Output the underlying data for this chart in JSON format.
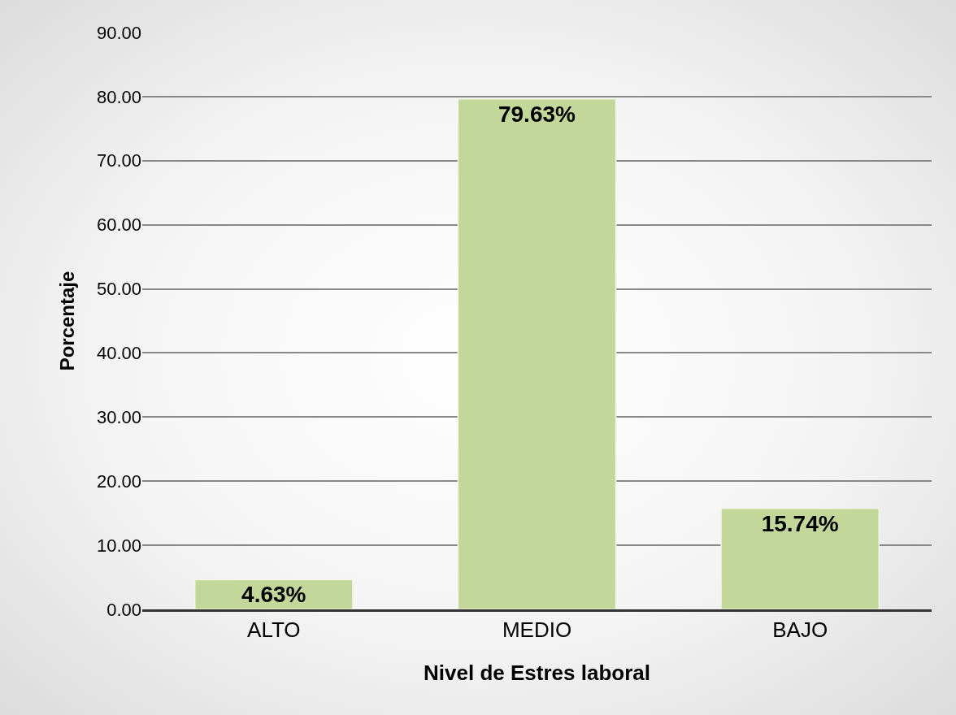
{
  "chart_data": {
    "type": "bar",
    "xlabel": "Nivel de Estres laboral",
    "ylabel": "Porcentaje",
    "categories": [
      "ALTO",
      "MEDIO",
      "BAJO"
    ],
    "values": [
      4.63,
      79.63,
      15.74
    ],
    "value_labels": [
      "4.63%",
      "79.63%",
      "15.74%"
    ],
    "color": "#c4d79b",
    "ylim": [
      0,
      90
    ],
    "yticks": [
      {
        "value": 0,
        "label": "0.00"
      },
      {
        "value": 10,
        "label": "10.00"
      },
      {
        "value": 20,
        "label": "20.00"
      },
      {
        "value": 30,
        "label": "30.00"
      },
      {
        "value": 40,
        "label": "40.00"
      },
      {
        "value": 50,
        "label": "50.00"
      },
      {
        "value": 60,
        "label": "60.00"
      },
      {
        "value": 70,
        "label": "70.00"
      },
      {
        "value": 80,
        "label": "80.00"
      },
      {
        "value": 90,
        "label": "90.00"
      }
    ],
    "grid": "y"
  }
}
